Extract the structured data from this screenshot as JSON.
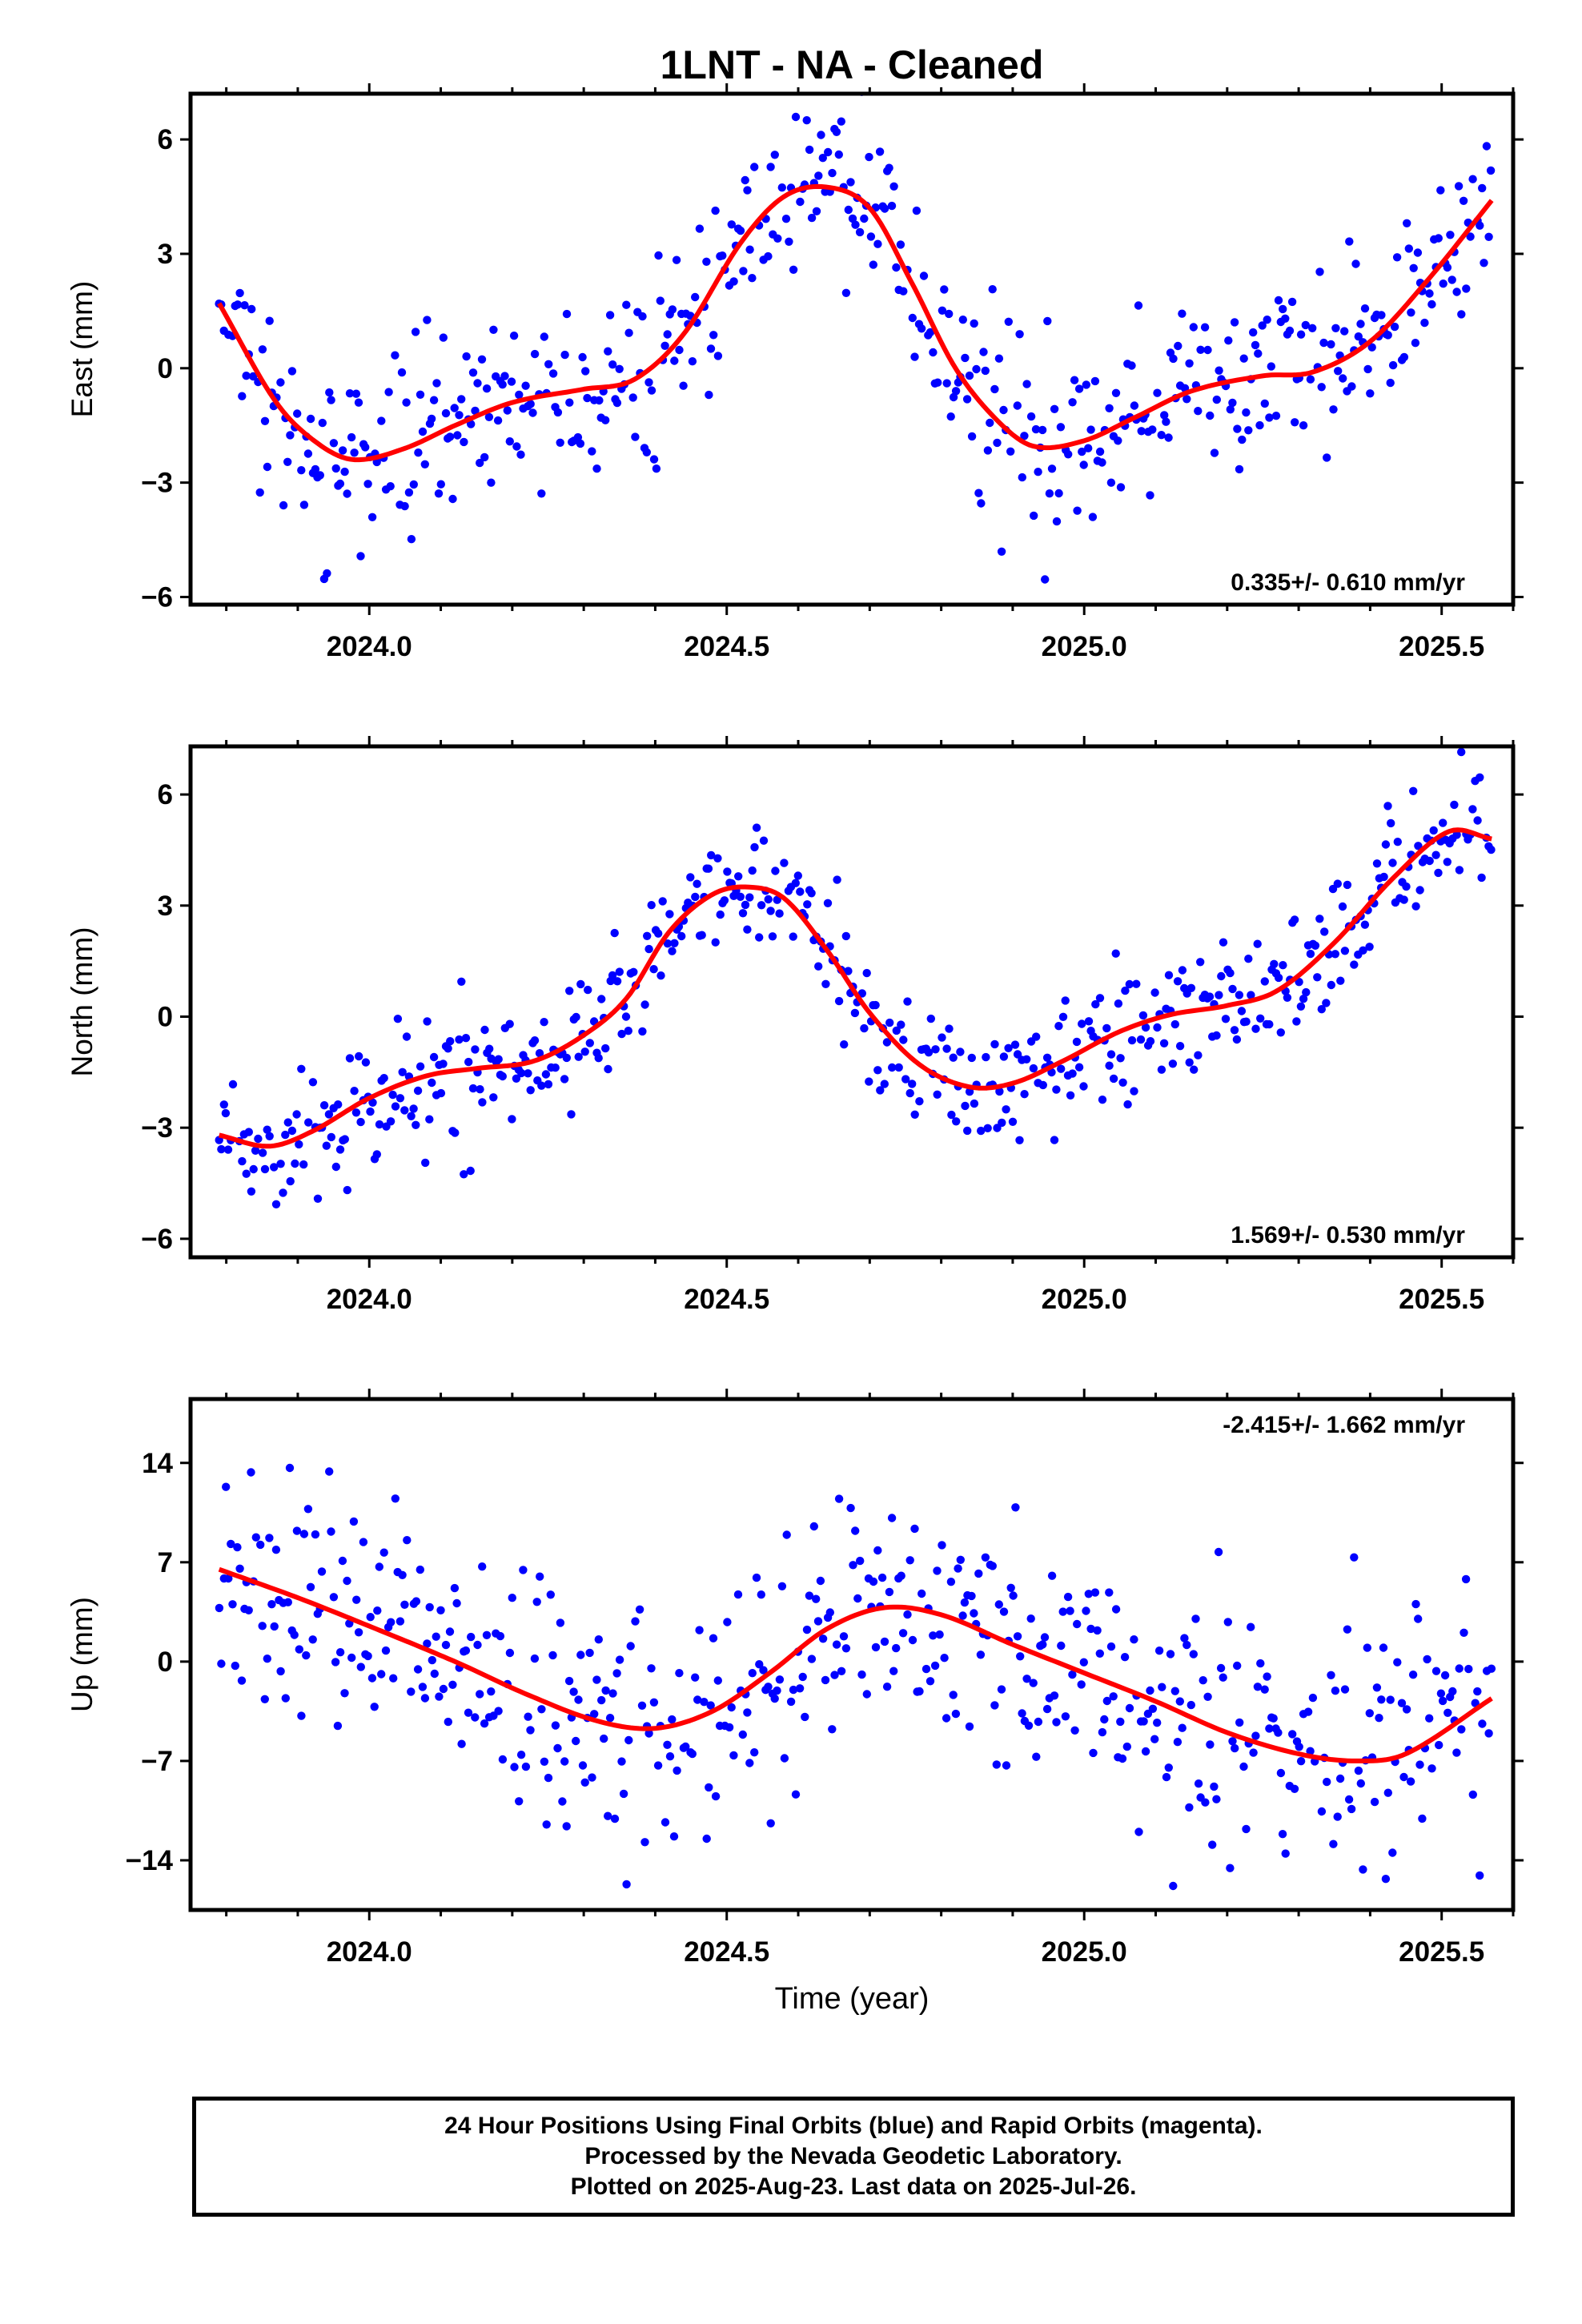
{
  "title": "1LNT  - NA - Cleaned",
  "xlabel": "Time (year)",
  "footer": {
    "line1": "24 Hour Positions Using Final Orbits (blue) and Rapid Orbits (magenta).",
    "line2": "Processed by the Nevada Geodetic Laboratory.",
    "line3": "Plotted on 2025-Aug-23. Last data on 2025-Jul-26."
  },
  "colors": {
    "points": "#0000ff",
    "fit": "#ff0000",
    "frame": "#000000"
  },
  "chart_data": [
    {
      "type": "scatter",
      "name": "east",
      "ylabel": "East (mm)",
      "rate": "0.335+/- 0.610 mm/yr",
      "rate_position": "bottom-right",
      "xlim": [
        2023.75,
        2025.6
      ],
      "ylim": [
        -6.2,
        7.2
      ],
      "yticks": [
        -6,
        -3,
        0,
        3,
        6
      ],
      "ytick_labels": [
        "−6",
        "−3",
        "0",
        "3",
        "6"
      ],
      "xticks": [
        2024.0,
        2024.5,
        2025.0,
        2025.5
      ],
      "xtick_labels": [
        "2024.0",
        "2024.5",
        "2025.0",
        "2025.5"
      ],
      "t_start": 2023.79,
      "t_end": 2025.57,
      "sample_step": 0.0032,
      "scatter_sigma": 1.2,
      "fit_knots": [
        [
          2023.79,
          1.7
        ],
        [
          2023.87,
          -0.9
        ],
        [
          2023.93,
          -2.0
        ],
        [
          2023.98,
          -2.4
        ],
        [
          2024.05,
          -2.1
        ],
        [
          2024.12,
          -1.5
        ],
        [
          2024.2,
          -0.9
        ],
        [
          2024.3,
          -0.55
        ],
        [
          2024.37,
          -0.3
        ],
        [
          2024.44,
          0.9
        ],
        [
          2024.52,
          3.3
        ],
        [
          2024.58,
          4.5
        ],
        [
          2024.64,
          4.75
        ],
        [
          2024.7,
          4.2
        ],
        [
          2024.76,
          2.2
        ],
        [
          2024.82,
          0.0
        ],
        [
          2024.88,
          -1.4
        ],
        [
          2024.93,
          -2.05
        ],
        [
          2025.0,
          -1.9
        ],
        [
          2025.07,
          -1.3
        ],
        [
          2025.15,
          -0.6
        ],
        [
          2025.25,
          -0.2
        ],
        [
          2025.32,
          -0.1
        ],
        [
          2025.4,
          0.7
        ],
        [
          2025.48,
          2.3
        ],
        [
          2025.57,
          4.4
        ]
      ]
    },
    {
      "type": "scatter",
      "name": "north",
      "ylabel": "North (mm)",
      "rate": "1.569+/- 0.530 mm/yr",
      "rate_position": "bottom-right",
      "xlim": [
        2023.75,
        2025.6
      ],
      "ylim": [
        -6.5,
        7.3
      ],
      "yticks": [
        -6,
        -3,
        0,
        3,
        6
      ],
      "ytick_labels": [
        "−6",
        "−3",
        "0",
        "3",
        "6"
      ],
      "xticks": [
        2024.0,
        2024.5,
        2025.0,
        2025.5
      ],
      "xtick_labels": [
        "2024.0",
        "2024.5",
        "2025.0",
        "2025.5"
      ],
      "t_start": 2023.79,
      "t_end": 2025.57,
      "sample_step": 0.0032,
      "scatter_sigma": 0.85,
      "fit_knots": [
        [
          2023.79,
          -3.2
        ],
        [
          2023.86,
          -3.5
        ],
        [
          2023.92,
          -3.1
        ],
        [
          2024.0,
          -2.2
        ],
        [
          2024.08,
          -1.6
        ],
        [
          2024.15,
          -1.4
        ],
        [
          2024.23,
          -1.2
        ],
        [
          2024.3,
          -0.5
        ],
        [
          2024.36,
          0.5
        ],
        [
          2024.42,
          2.3
        ],
        [
          2024.48,
          3.3
        ],
        [
          2024.53,
          3.5
        ],
        [
          2024.58,
          3.2
        ],
        [
          2024.64,
          1.8
        ],
        [
          2024.7,
          0.1
        ],
        [
          2024.77,
          -1.3
        ],
        [
          2024.84,
          -1.9
        ],
        [
          2024.9,
          -1.8
        ],
        [
          2024.97,
          -1.2
        ],
        [
          2025.05,
          -0.4
        ],
        [
          2025.12,
          0.05
        ],
        [
          2025.2,
          0.3
        ],
        [
          2025.27,
          0.7
        ],
        [
          2025.35,
          2.0
        ],
        [
          2025.43,
          3.7
        ],
        [
          2025.51,
          5.0
        ],
        [
          2025.57,
          4.8
        ]
      ]
    },
    {
      "type": "scatter",
      "name": "up",
      "ylabel": "Up (mm)",
      "rate": "-2.415+/- 1.662 mm/yr",
      "rate_position": "top-right",
      "xlim": [
        2023.75,
        2025.6
      ],
      "ylim": [
        -17.5,
        18.5
      ],
      "yticks": [
        -14,
        -7,
        0,
        7,
        14
      ],
      "ytick_labels": [
        "−14",
        "−7",
        "0",
        "7",
        "14"
      ],
      "xticks": [
        2024.0,
        2024.5,
        2025.0,
        2025.5
      ],
      "xtick_labels": [
        "2024.0",
        "2024.5",
        "2025.0",
        "2025.5"
      ],
      "t_start": 2023.79,
      "t_end": 2025.57,
      "sample_step": 0.0032,
      "scatter_sigma": 4.4,
      "fit_knots": [
        [
          2023.79,
          6.5
        ],
        [
          2023.9,
          4.5
        ],
        [
          2024.0,
          2.5
        ],
        [
          2024.12,
          0.0
        ],
        [
          2024.22,
          -2.3
        ],
        [
          2024.32,
          -4.2
        ],
        [
          2024.4,
          -4.7
        ],
        [
          2024.48,
          -3.5
        ],
        [
          2024.56,
          -0.8
        ],
        [
          2024.64,
          2.3
        ],
        [
          2024.72,
          3.8
        ],
        [
          2024.8,
          3.3
        ],
        [
          2024.9,
          1.2
        ],
        [
          2025.0,
          -0.8
        ],
        [
          2025.1,
          -2.8
        ],
        [
          2025.2,
          -5.0
        ],
        [
          2025.3,
          -6.5
        ],
        [
          2025.38,
          -7.0
        ],
        [
          2025.45,
          -6.5
        ],
        [
          2025.57,
          -2.6
        ]
      ]
    }
  ]
}
